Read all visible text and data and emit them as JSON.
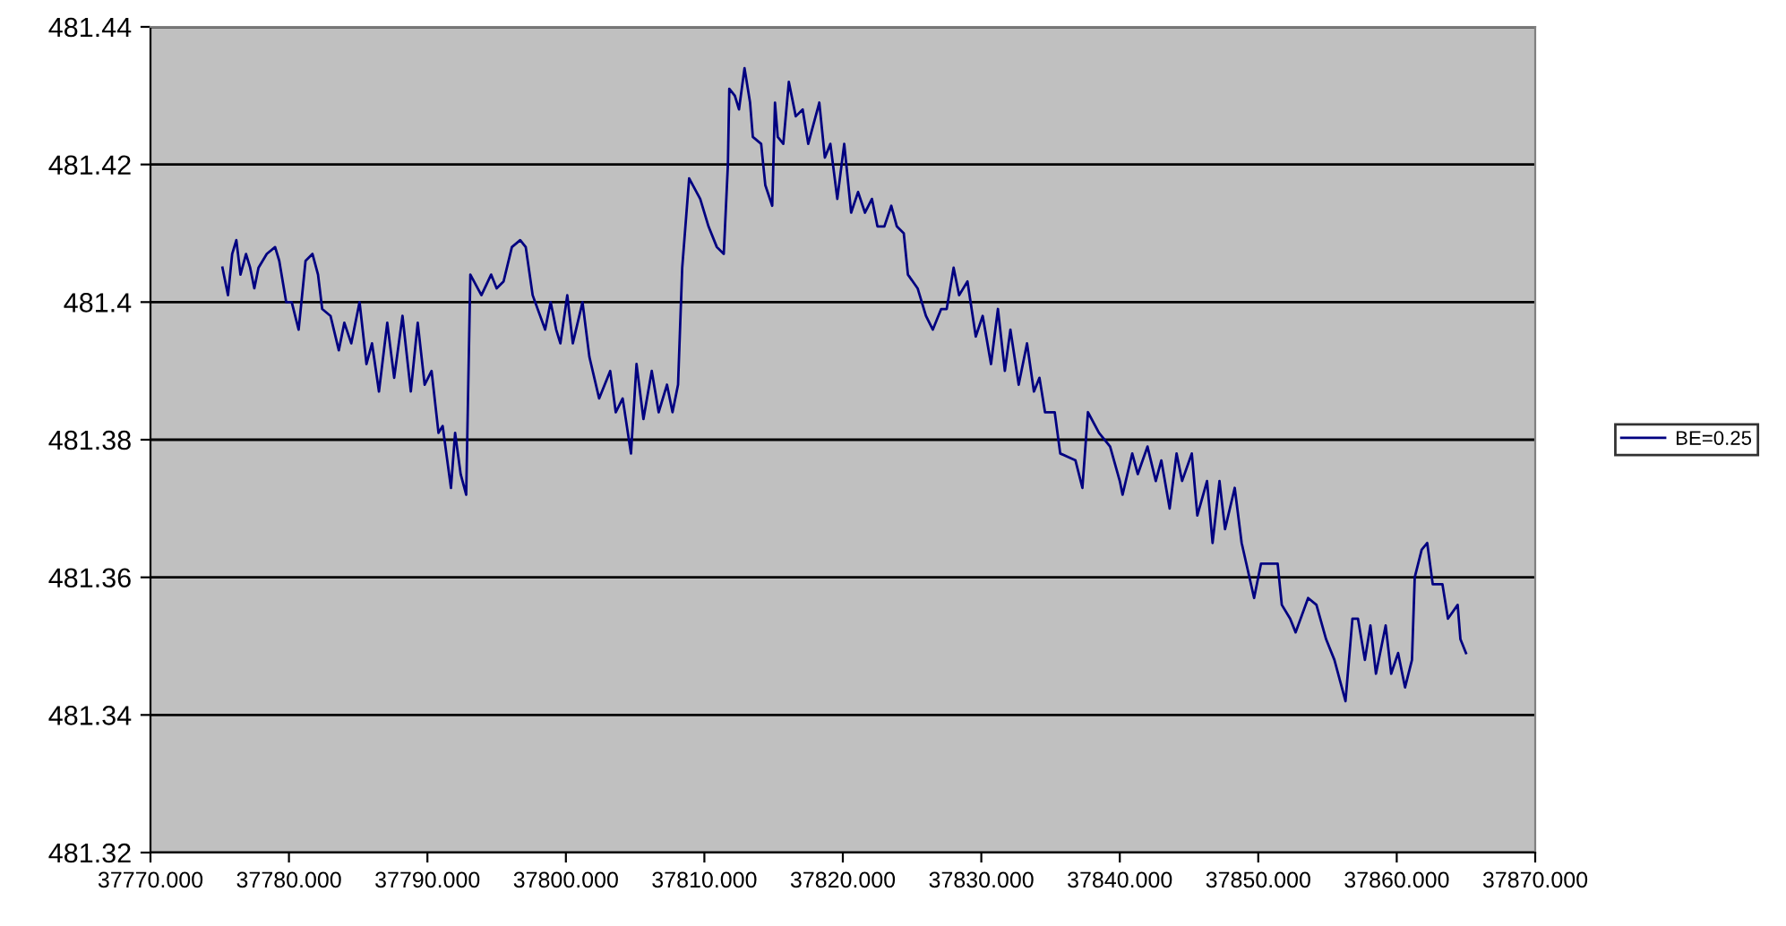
{
  "chart_data": {
    "type": "line",
    "grid": "y",
    "legend": "right",
    "marker": "none",
    "line_style": "solid",
    "xlim": [
      37770,
      37870
    ],
    "xticks": [
      {
        "value": 37770,
        "label": "37770.000"
      },
      {
        "value": 37780,
        "label": "37780.000"
      },
      {
        "value": 37790,
        "label": "37790.000"
      },
      {
        "value": 37800,
        "label": "37800.000"
      },
      {
        "value": 37810,
        "label": "37810.000"
      },
      {
        "value": 37820,
        "label": "37820.000"
      },
      {
        "value": 37830,
        "label": "37830.000"
      },
      {
        "value": 37840,
        "label": "37840.000"
      },
      {
        "value": 37850,
        "label": "37850.000"
      },
      {
        "value": 37860,
        "label": "37860.000"
      },
      {
        "value": 37870,
        "label": "37870.000"
      }
    ],
    "ylim": [
      481.32,
      481.44
    ],
    "yticks": [
      {
        "value": 481.32,
        "label": "481.32"
      },
      {
        "value": 481.34,
        "label": "481.34"
      },
      {
        "value": 481.36,
        "label": "481.36"
      },
      {
        "value": 481.38,
        "label": "481.38"
      },
      {
        "value": 481.4,
        "label": "481.4"
      },
      {
        "value": 481.42,
        "label": "481.42"
      },
      {
        "value": 481.44,
        "label": "481.44"
      }
    ],
    "series": [
      {
        "name": "BE=0.25",
        "color": "#000080",
        "x": [
          37775.2,
          37775.6,
          37775.9,
          37776.2,
          37776.5,
          37776.9,
          37777.2,
          37777.5,
          37777.8,
          37778.4,
          37779.0,
          37779.3,
          37779.8,
          37780.2,
          37780.7,
          37781.2,
          37781.7,
          37782.1,
          37782.4,
          37783.0,
          37783.6,
          37784.0,
          37784.5,
          37785.1,
          37785.6,
          37786.0,
          37786.5,
          37787.1,
          37787.6,
          37788.2,
          37788.8,
          37789.3,
          37789.8,
          37790.3,
          37790.8,
          37791.1,
          37791.7,
          37792.0,
          37792.4,
          37792.8,
          37793.1,
          37793.9,
          37794.6,
          37795.0,
          37795.5,
          37796.1,
          37796.7,
          37797.1,
          37797.6,
          37798.5,
          37798.9,
          37799.3,
          37799.6,
          37800.1,
          37800.5,
          37801.2,
          37801.7,
          37802.4,
          37803.2,
          37803.6,
          37804.1,
          37804.7,
          37805.1,
          37805.6,
          37806.2,
          37806.7,
          37807.3,
          37807.7,
          37808.1,
          37808.4,
          37808.9,
          37809.7,
          37810.3,
          37810.9,
          37811.4,
          37811.7,
          37811.8,
          37812.2,
          37812.5,
          37812.9,
          37813.3,
          37813.5,
          37814.1,
          37814.4,
          37814.9,
          37815.1,
          37815.3,
          37815.7,
          37816.1,
          37816.6,
          37817.1,
          37817.5,
          37818.3,
          37818.7,
          37819.1,
          37819.6,
          37820.1,
          37820.6,
          37821.1,
          37821.6,
          37822.1,
          37822.5,
          37823.0,
          37823.5,
          37823.9,
          37824.4,
          37824.7,
          37825.4,
          37826.0,
          37826.5,
          37827.1,
          37827.5,
          37828.0,
          37828.4,
          37829.0,
          37829.6,
          37830.1,
          37830.7,
          37831.2,
          37831.7,
          37832.1,
          37832.7,
          37833.3,
          37833.8,
          37834.2,
          37834.6,
          37835.3,
          37835.7,
          37836.8,
          37837.3,
          37837.7,
          37838.5,
          37839.3,
          37840.0,
          37840.2,
          37840.9,
          37841.3,
          37842.0,
          37842.6,
          37843.0,
          37843.6,
          37844.1,
          37844.5,
          37845.2,
          37845.6,
          37846.3,
          37846.7,
          37847.2,
          37847.6,
          37848.3,
          37848.8,
          37849.7,
          37850.2,
          37851.4,
          37851.7,
          37852.3,
          37852.7,
          37853.6,
          37854.2,
          37854.9,
          37855.5,
          37856.3,
          37856.8,
          37857.2,
          37857.7,
          37858.1,
          37858.5,
          37859.2,
          37859.6,
          37860.1,
          37860.6,
          37861.1,
          37861.3,
          37861.8,
          37862.2,
          37862.6,
          37863.3,
          37863.7,
          37864.4,
          37864.6,
          37865.0
        ],
        "values": [
          481.405,
          481.401,
          481.407,
          481.409,
          481.404,
          481.407,
          481.405,
          481.402,
          481.405,
          481.407,
          481.408,
          481.406,
          481.4,
          481.4,
          481.396,
          481.406,
          481.407,
          481.404,
          481.399,
          481.398,
          481.393,
          481.397,
          481.394,
          481.4,
          481.391,
          481.394,
          481.387,
          481.397,
          481.389,
          481.398,
          481.387,
          481.397,
          481.388,
          481.39,
          481.381,
          481.382,
          481.373,
          481.381,
          481.375,
          481.372,
          481.404,
          481.401,
          481.404,
          481.402,
          481.403,
          481.408,
          481.409,
          481.408,
          481.401,
          481.396,
          481.4,
          481.396,
          481.394,
          481.401,
          481.394,
          481.4,
          481.392,
          481.386,
          481.39,
          481.384,
          481.386,
          481.378,
          481.391,
          481.383,
          481.39,
          481.384,
          481.388,
          481.384,
          481.388,
          481.405,
          481.418,
          481.415,
          481.411,
          481.408,
          481.407,
          481.42,
          481.431,
          481.43,
          481.428,
          481.434,
          481.429,
          481.424,
          481.423,
          481.417,
          481.414,
          481.429,
          481.424,
          481.423,
          481.432,
          481.427,
          481.428,
          481.423,
          481.429,
          481.421,
          481.423,
          481.415,
          481.423,
          481.413,
          481.416,
          481.413,
          481.415,
          481.411,
          481.411,
          481.414,
          481.411,
          481.41,
          481.404,
          481.402,
          481.398,
          481.396,
          481.399,
          481.399,
          481.405,
          481.401,
          481.403,
          481.395,
          481.398,
          481.391,
          481.399,
          481.39,
          481.396,
          481.388,
          481.394,
          481.387,
          481.389,
          481.384,
          481.384,
          481.378,
          481.377,
          481.373,
          481.384,
          481.381,
          481.379,
          481.374,
          481.372,
          481.378,
          481.375,
          481.379,
          481.374,
          481.377,
          481.37,
          481.378,
          481.374,
          481.378,
          481.369,
          481.374,
          481.365,
          481.374,
          481.367,
          481.373,
          481.365,
          481.357,
          481.362,
          481.362,
          481.356,
          481.354,
          481.352,
          481.357,
          481.356,
          481.351,
          481.348,
          481.342,
          481.354,
          481.354,
          481.348,
          481.353,
          481.346,
          481.353,
          481.346,
          481.349,
          481.344,
          481.348,
          481.36,
          481.364,
          481.365,
          481.359,
          481.359,
          481.354,
          481.356,
          481.351,
          481.349
        ]
      }
    ]
  }
}
